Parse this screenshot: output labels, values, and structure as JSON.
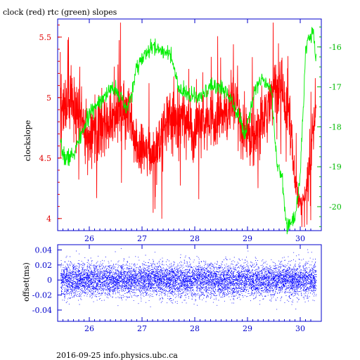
{
  "chart_data": [
    {
      "type": "line",
      "title": "clock (red) rtc (green) slopes",
      "ylabel": "clockslope",
      "xlabel": "",
      "xlim": [
        25.4,
        30.4
      ],
      "ylim": [
        3.9,
        5.65
      ],
      "y2lim": [
        -20.6,
        -15.3
      ],
      "x_ticks": [
        26,
        27,
        28,
        29,
        30
      ],
      "x_tick_labels": [
        "26",
        "27",
        "28",
        "29",
        "30"
      ],
      "y_ticks": [
        4,
        4.5,
        5,
        5.5
      ],
      "y_tick_labels": [
        "4",
        "4.5",
        "5",
        "5.5"
      ],
      "y2_ticks": [
        -16,
        -17,
        -18,
        -19,
        -20
      ],
      "y2_tick_labels": [
        "-16",
        "-17",
        "-18",
        "-19",
        "-20"
      ],
      "colors": {
        "clock": "#ff0000",
        "rtc": "#00ee00",
        "frame": "#0000cc"
      },
      "series": [
        {
          "axis": "left",
          "color": "#ff0000",
          "x": [
            25.45,
            25.6,
            25.8,
            26.0,
            26.2,
            26.4,
            26.6,
            26.75,
            26.9,
            27.1,
            27.3,
            27.5,
            27.7,
            27.9,
            28.1,
            28.3,
            28.5,
            28.7,
            28.9,
            29.1,
            29.3,
            29.5,
            29.65,
            29.8,
            29.9,
            30.0,
            30.1,
            30.2,
            30.3
          ],
          "y": [
            4.9,
            4.95,
            4.85,
            4.7,
            4.75,
            4.8,
            4.85,
            4.9,
            4.6,
            4.55,
            4.6,
            4.8,
            4.85,
            4.75,
            4.8,
            4.85,
            4.85,
            4.95,
            4.8,
            4.65,
            4.85,
            5.05,
            5.1,
            4.8,
            4.3,
            4.1,
            4.2,
            4.6,
            4.9
          ],
          "spread": [
            0.2,
            0.22,
            0.2,
            0.18,
            0.18,
            0.17,
            0.17,
            0.15,
            0.15,
            0.15,
            0.15,
            0.17,
            0.18,
            0.17,
            0.17,
            0.17,
            0.17,
            0.18,
            0.17,
            0.15,
            0.15,
            0.17,
            0.18,
            0.15,
            0.1,
            0.05,
            0.08,
            0.15,
            0.15
          ]
        },
        {
          "axis": "right",
          "color": "#00ee00",
          "x": [
            25.45,
            25.55,
            25.7,
            25.85,
            26.0,
            26.15,
            26.3,
            26.5,
            26.7,
            26.8,
            26.9,
            27.0,
            27.2,
            27.4,
            27.5,
            27.6,
            27.7,
            27.9,
            28.1,
            28.3,
            28.5,
            28.7,
            28.85,
            28.95,
            29.05,
            29.15,
            29.3,
            29.45,
            29.55,
            29.65,
            29.75,
            29.9,
            30.0,
            30.1,
            30.15,
            30.25,
            30.3
          ],
          "y": [
            -18.5,
            -18.8,
            -18.7,
            -18.2,
            -17.7,
            -17.4,
            -17.2,
            -17.0,
            -17.6,
            -17.2,
            -16.5,
            -16.3,
            -16.0,
            -16.1,
            -16.1,
            -16.5,
            -17.1,
            -17.2,
            -17.3,
            -17.0,
            -17.0,
            -17.3,
            -17.8,
            -18.2,
            -17.6,
            -17.0,
            -16.8,
            -17.0,
            -18.8,
            -19.3,
            -20.5,
            -20.3,
            -19.2,
            -16.2,
            -15.8,
            -15.6,
            -16.3
          ],
          "spread": [
            0.12,
            0.12,
            0.12,
            0.1,
            0.1,
            0.1,
            0.1,
            0.1,
            0.1,
            0.1,
            0.1,
            0.1,
            0.1,
            0.1,
            0.1,
            0.1,
            0.1,
            0.1,
            0.1,
            0.1,
            0.1,
            0.1,
            0.1,
            0.1,
            0.1,
            0.1,
            0.1,
            0.1,
            0.1,
            0.1,
            0.1,
            0.1,
            0.1,
            0.1,
            0.1,
            0.1,
            0.1
          ]
        }
      ]
    },
    {
      "type": "scatter",
      "ylabel": "offset(ms)",
      "xlabel": "",
      "xlim": [
        25.4,
        30.4
      ],
      "ylim": [
        -0.055,
        0.047
      ],
      "x_ticks": [
        26,
        27,
        28,
        29,
        30
      ],
      "x_tick_labels": [
        "26",
        "27",
        "28",
        "29",
        "30"
      ],
      "y_ticks": [
        0.04,
        0.02,
        0,
        -0.02,
        -0.04
      ],
      "y_tick_labels": [
        "0.04",
        "0.02",
        "0",
        "-0.02",
        "-0.04"
      ],
      "series": [
        {
          "color": "#0000ff",
          "x_range": [
            25.45,
            30.3
          ],
          "center": 0,
          "core_std": 0.011,
          "extreme": 0.042
        }
      ]
    }
  ],
  "footer": {
    "text": "2016-09-25 info.physics.ubc.ca"
  }
}
